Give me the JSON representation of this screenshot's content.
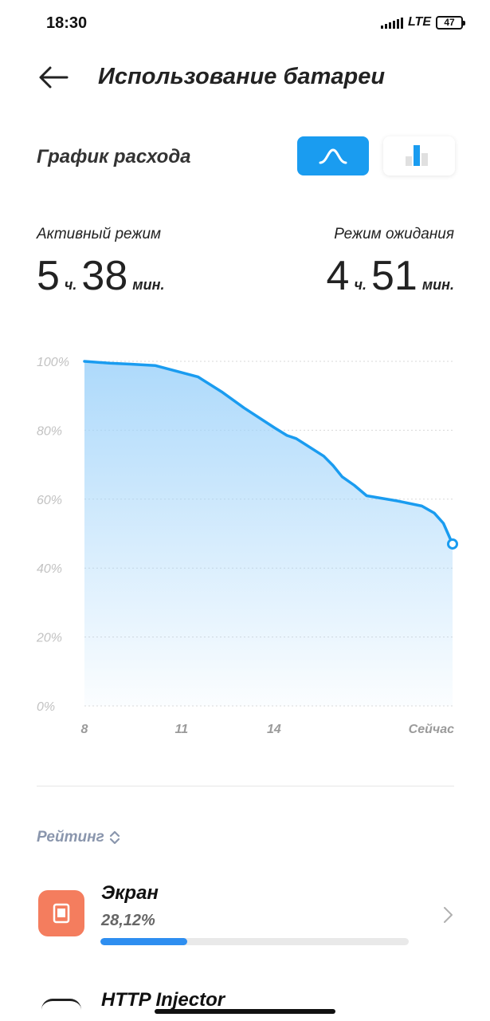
{
  "status_bar": {
    "time": "18:30",
    "network": "LTE",
    "battery": "47"
  },
  "header": {
    "title": "Использование батареи"
  },
  "section": {
    "title": "График расхода"
  },
  "stats": {
    "active": {
      "label": "Активный режим",
      "hours": "5",
      "hours_unit": "ч.",
      "minutes": "38",
      "minutes_unit": "мин."
    },
    "standby": {
      "label": "Режим ожидания",
      "hours": "4",
      "hours_unit": "ч.",
      "minutes": "51",
      "minutes_unit": "мин."
    }
  },
  "chart_data": {
    "type": "area",
    "y_ticks": [
      "100%",
      "80%",
      "60%",
      "40%",
      "20%",
      "0%"
    ],
    "x_ticks": [
      "8",
      "11",
      "14",
      "Сейчас"
    ],
    "ylim": [
      0,
      100
    ],
    "points": [
      {
        "x": 8.0,
        "y": 100
      },
      {
        "x": 8.8,
        "y": 99.5
      },
      {
        "x": 9.5,
        "y": 99.2
      },
      {
        "x": 10.3,
        "y": 98.8
      },
      {
        "x": 11.7,
        "y": 95.5
      },
      {
        "x": 12.5,
        "y": 91
      },
      {
        "x": 13.2,
        "y": 86.5
      },
      {
        "x": 14.2,
        "y": 80.7
      },
      {
        "x": 14.6,
        "y": 78.5
      },
      {
        "x": 14.9,
        "y": 77.6
      },
      {
        "x": 15.8,
        "y": 72.5
      },
      {
        "x": 16.1,
        "y": 69.8
      },
      {
        "x": 16.4,
        "y": 66.5
      },
      {
        "x": 16.8,
        "y": 64
      },
      {
        "x": 17.2,
        "y": 61
      },
      {
        "x": 18.2,
        "y": 59.5
      },
      {
        "x": 19.0,
        "y": 58
      },
      {
        "x": 19.4,
        "y": 56
      },
      {
        "x": 19.7,
        "y": 53
      },
      {
        "x": 20.0,
        "y": 47
      }
    ],
    "line_color": "#1a9cf0",
    "grid": true,
    "current_marker": true
  },
  "rating": {
    "label": "Рейтинг"
  },
  "apps": [
    {
      "name": "Экран",
      "percent": "28,12%",
      "usage": 0.2812,
      "icon": "screen-icon",
      "icon_color": "#f47d5e"
    },
    {
      "name": "HTTP Injector"
    }
  ],
  "colors": {
    "accent": "#1a9cf0",
    "progress": "#2e8ef0"
  }
}
